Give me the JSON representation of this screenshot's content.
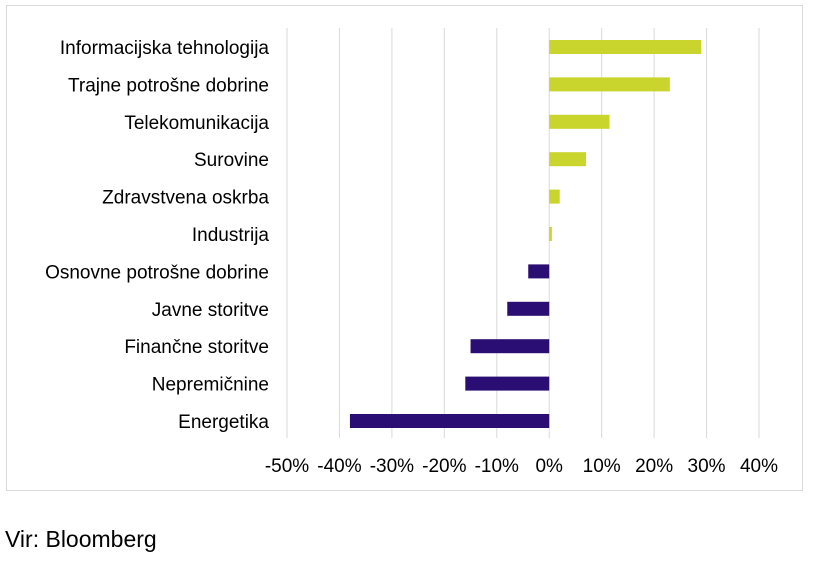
{
  "chart_data": {
    "type": "bar",
    "orientation": "horizontal",
    "categories": [
      "Informacijska tehnologija",
      "Trajne potrošne dobrine",
      "Telekomunikacija",
      "Surovine",
      "Zdravstvena oskrba",
      "Industrija",
      "Osnovne potrošne dobrine",
      "Javne storitve",
      "Finančne storitve",
      "Nepremičnine",
      "Energetika"
    ],
    "values": [
      29,
      23,
      11.5,
      7,
      2,
      0.5,
      -4,
      -8,
      -15,
      -16,
      -38
    ],
    "unit": "%",
    "xlim": [
      -50,
      40
    ],
    "xticks": [
      -50,
      -40,
      -30,
      -20,
      -10,
      0,
      10,
      20,
      30,
      40
    ],
    "xtick_labels": [
      "-50%",
      "-40%",
      "-30%",
      "-20%",
      "-10%",
      "0%",
      "10%",
      "20%",
      "30%",
      "40%"
    ],
    "grid": true,
    "colors": {
      "positive": "#c9d42c",
      "negative": "#2a0e73",
      "grid": "#d9d9d9"
    }
  },
  "source_note": "Vir: Bloomberg"
}
